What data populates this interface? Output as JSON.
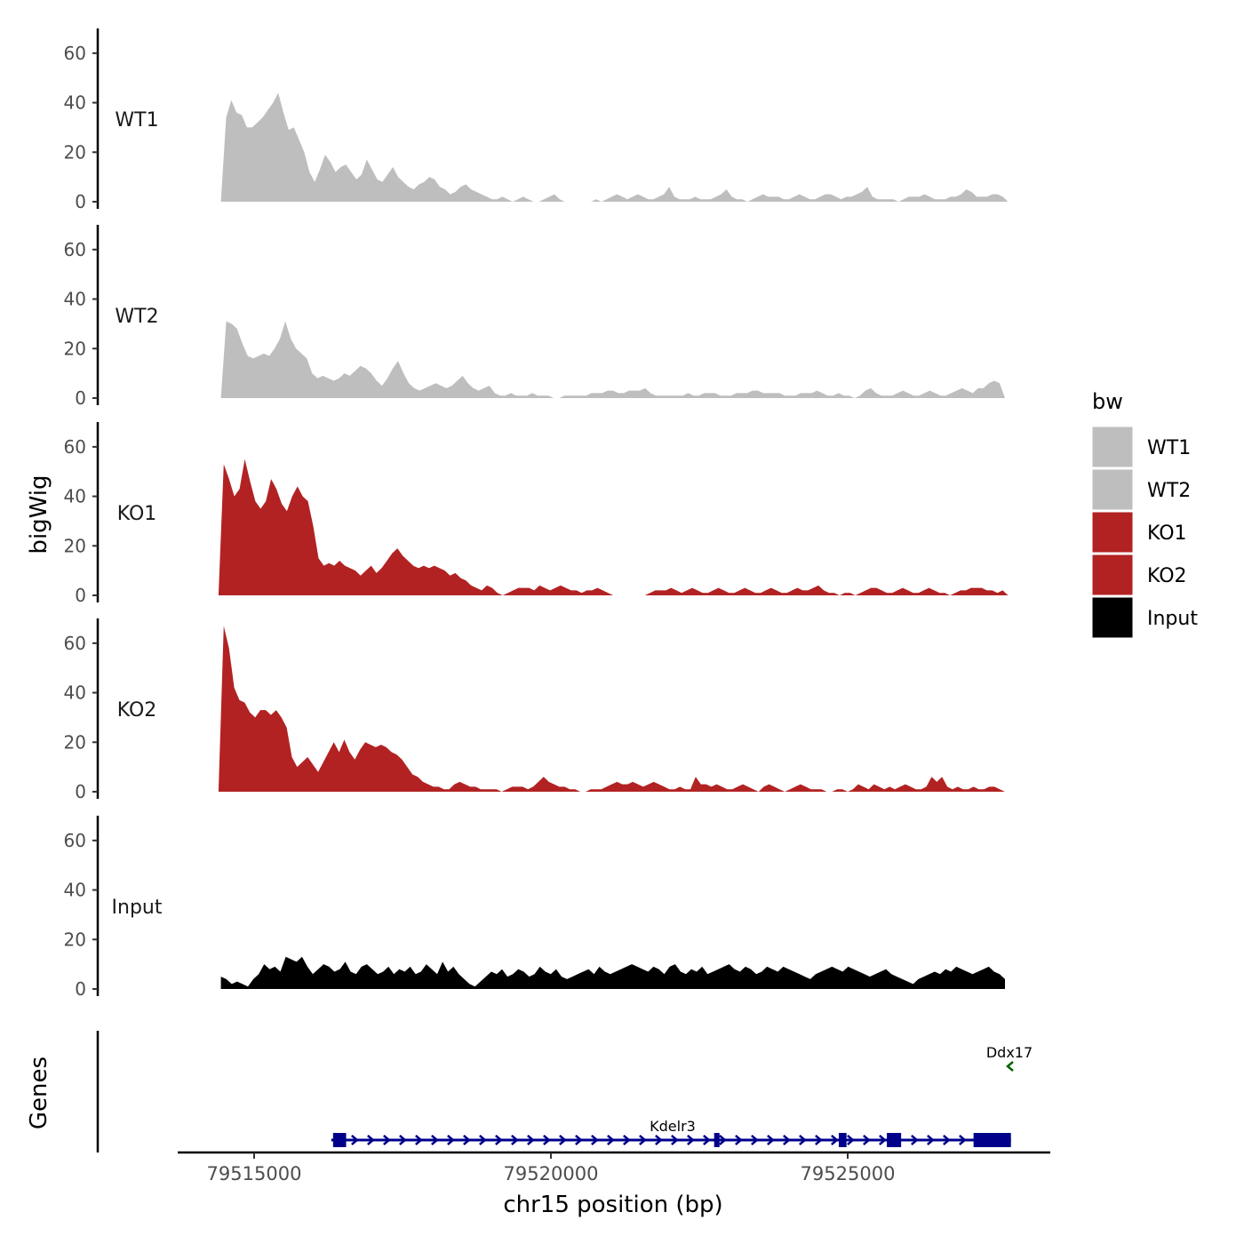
{
  "chart_data": {
    "type": "area",
    "title": "",
    "xlabel": "chr15 position (bp)",
    "ylabel": "bigWig",
    "genes_label": "Genes",
    "xlim": [
      79513600,
      79528500
    ],
    "x_ticks": [
      79515000,
      79520000,
      79525000
    ],
    "x_tick_labels": [
      "79515000",
      "79520000",
      "79525000"
    ],
    "ylim": [
      0,
      70
    ],
    "y_ticks": [
      0,
      20,
      40,
      60
    ],
    "y_tick_labels": [
      "0",
      "20",
      "40",
      "60"
    ],
    "legend": {
      "title": "bw",
      "position": "right",
      "entries": [
        {
          "label": "WT1",
          "color": "#bebebe"
        },
        {
          "label": "WT2",
          "color": "#bebebe"
        },
        {
          "label": "KO1",
          "color": "#b22222"
        },
        {
          "label": "KO2",
          "color": "#b22222"
        },
        {
          "label": "Input",
          "color": "#000000"
        }
      ]
    },
    "series": [
      {
        "name": "WT1",
        "color": "#bebebe",
        "x_start": 79514440,
        "x_end": 79527700,
        "values": [
          0,
          34,
          41,
          36,
          35,
          30,
          30,
          32,
          34,
          37,
          40,
          44,
          36,
          29,
          30,
          25,
          20,
          12,
          8,
          13,
          19,
          16,
          12,
          14,
          15,
          12,
          9,
          11,
          17,
          13,
          9,
          8,
          11,
          14,
          10,
          8,
          6,
          5,
          7,
          8,
          10,
          9,
          6,
          5,
          3,
          4,
          6,
          7,
          5,
          4,
          3,
          2,
          1,
          1,
          2,
          1,
          0,
          1,
          2,
          1,
          0,
          0,
          1,
          2,
          3,
          1,
          0,
          0,
          0,
          0,
          0,
          0,
          1,
          0,
          1,
          2,
          3,
          2,
          1,
          2,
          3,
          2,
          1,
          1,
          2,
          3,
          6,
          2,
          1,
          1,
          1,
          2,
          1,
          1,
          1,
          2,
          3,
          5,
          2,
          1,
          1,
          0,
          1,
          2,
          3,
          2,
          2,
          2,
          1,
          1,
          2,
          3,
          2,
          1,
          1,
          2,
          3,
          3,
          2,
          1,
          2,
          2,
          3,
          4,
          6,
          2,
          1,
          1,
          1,
          1,
          0,
          1,
          2,
          2,
          2,
          3,
          2,
          1,
          1,
          1,
          2,
          2,
          3,
          5,
          4,
          2,
          2,
          2,
          3,
          3,
          2,
          0
        ]
      },
      {
        "name": "WT2",
        "color": "#bebebe",
        "x_start": 79514440,
        "x_end": 79527650,
        "values": [
          0,
          31,
          30,
          28,
          22,
          17,
          16,
          17,
          18,
          17,
          20,
          24,
          31,
          24,
          20,
          18,
          16,
          10,
          8,
          9,
          8,
          7,
          8,
          10,
          9,
          11,
          13,
          12,
          10,
          7,
          5,
          8,
          12,
          15,
          10,
          6,
          4,
          3,
          4,
          5,
          6,
          5,
          4,
          5,
          7,
          9,
          6,
          4,
          3,
          4,
          5,
          2,
          1,
          1,
          2,
          1,
          1,
          1,
          2,
          1,
          1,
          1,
          0,
          0,
          1,
          1,
          1,
          1,
          1,
          2,
          2,
          2,
          3,
          3,
          2,
          2,
          3,
          3,
          3,
          4,
          2,
          1,
          1,
          1,
          1,
          1,
          1,
          2,
          1,
          1,
          2,
          2,
          2,
          1,
          1,
          1,
          2,
          2,
          2,
          3,
          3,
          2,
          2,
          2,
          2,
          1,
          1,
          1,
          2,
          2,
          2,
          3,
          2,
          1,
          1,
          2,
          1,
          1,
          0,
          1,
          3,
          4,
          2,
          1,
          1,
          1,
          2,
          3,
          2,
          1,
          1,
          2,
          3,
          2,
          1,
          1,
          2,
          3,
          4,
          3,
          2,
          4,
          4,
          6,
          7,
          6,
          0
        ]
      },
      {
        "name": "KO1",
        "color": "#b22222",
        "x_start": 79514400,
        "x_end": 79527700,
        "values": [
          0,
          53,
          47,
          40,
          43,
          55,
          46,
          38,
          35,
          38,
          47,
          43,
          37,
          34,
          40,
          44,
          40,
          38,
          28,
          15,
          12,
          13,
          12,
          14,
          12,
          11,
          10,
          8,
          10,
          12,
          9,
          11,
          14,
          17,
          19,
          16,
          14,
          12,
          11,
          12,
          11,
          12,
          11,
          10,
          8,
          9,
          7,
          6,
          4,
          3,
          2,
          4,
          3,
          1,
          0,
          1,
          2,
          3,
          3,
          3,
          2,
          4,
          3,
          2,
          3,
          4,
          3,
          2,
          2,
          1,
          2,
          2,
          3,
          2,
          1,
          0,
          0,
          0,
          0,
          0,
          0,
          0,
          1,
          2,
          2,
          2,
          3,
          2,
          1,
          2,
          3,
          2,
          1,
          1,
          2,
          3,
          2,
          1,
          1,
          2,
          3,
          2,
          1,
          1,
          2,
          3,
          2,
          1,
          1,
          2,
          3,
          2,
          2,
          3,
          4,
          2,
          1,
          1,
          0,
          1,
          1,
          0,
          1,
          2,
          3,
          3,
          2,
          1,
          1,
          2,
          3,
          2,
          1,
          1,
          2,
          3,
          2,
          1,
          1,
          0,
          1,
          2,
          2,
          3,
          3,
          3,
          2,
          2,
          1,
          2,
          0
        ]
      },
      {
        "name": "KO2",
        "color": "#b22222",
        "x_start": 79514400,
        "x_end": 79527650,
        "values": [
          0,
          67,
          58,
          42,
          37,
          36,
          32,
          30,
          33,
          33,
          31,
          33,
          30,
          26,
          14,
          10,
          12,
          14,
          11,
          8,
          12,
          16,
          20,
          16,
          21,
          16,
          13,
          17,
          20,
          19,
          18,
          19,
          18,
          16,
          15,
          13,
          10,
          7,
          6,
          4,
          3,
          2,
          2,
          1,
          1,
          3,
          4,
          3,
          2,
          2,
          1,
          1,
          1,
          1,
          0,
          1,
          2,
          2,
          2,
          1,
          2,
          4,
          6,
          4,
          3,
          2,
          2,
          1,
          1,
          0,
          0,
          1,
          1,
          1,
          2,
          3,
          4,
          3,
          3,
          4,
          3,
          2,
          3,
          4,
          3,
          2,
          1,
          1,
          2,
          1,
          1,
          6,
          3,
          3,
          2,
          3,
          2,
          1,
          1,
          2,
          3,
          2,
          1,
          0,
          2,
          3,
          2,
          1,
          0,
          1,
          2,
          3,
          2,
          1,
          1,
          1,
          0,
          0,
          1,
          1,
          0,
          1,
          3,
          2,
          1,
          3,
          2,
          1,
          2,
          1,
          2,
          3,
          2,
          1,
          1,
          2,
          6,
          4,
          6,
          2,
          1,
          2,
          1,
          1,
          2,
          1,
          1,
          2,
          2,
          1,
          0
        ]
      },
      {
        "name": "Input",
        "color": "#000000",
        "x_start": 79514440,
        "x_end": 79527650,
        "values": [
          5,
          4,
          2,
          3,
          2,
          1,
          4,
          6,
          10,
          8,
          9,
          7,
          13,
          12,
          11,
          13,
          9,
          6,
          8,
          10,
          9,
          7,
          8,
          11,
          7,
          6,
          9,
          10,
          8,
          6,
          7,
          9,
          6,
          8,
          7,
          9,
          6,
          7,
          10,
          8,
          6,
          11,
          7,
          9,
          6,
          4,
          2,
          1,
          3,
          5,
          7,
          6,
          8,
          5,
          6,
          8,
          7,
          5,
          6,
          9,
          7,
          6,
          8,
          5,
          4,
          5,
          6,
          7,
          8,
          6,
          9,
          7,
          6,
          7,
          8,
          9,
          10,
          9,
          8,
          7,
          9,
          8,
          6,
          9,
          10,
          7,
          6,
          8,
          7,
          9,
          6,
          7,
          8,
          9,
          10,
          8,
          7,
          9,
          8,
          6,
          7,
          9,
          8,
          7,
          9,
          8,
          7,
          6,
          5,
          4,
          6,
          7,
          8,
          9,
          8,
          7,
          9,
          8,
          7,
          6,
          5,
          6,
          7,
          8,
          6,
          5,
          4,
          3,
          2,
          4,
          5,
          6,
          7,
          6,
          8,
          7,
          9,
          8,
          7,
          6,
          7,
          8,
          9,
          7,
          6,
          4
        ]
      }
    ],
    "genes": [
      {
        "name": "Kdelr3",
        "strand": "+",
        "color": "#00008b",
        "start": 79516300,
        "end": 79527750,
        "exons": [
          [
            79516330,
            79516550
          ],
          [
            79522750,
            79522840
          ],
          [
            79524850,
            79524980
          ],
          [
            79525660,
            79525900
          ],
          [
            79527120,
            79527750
          ]
        ]
      },
      {
        "name": "Ddx17",
        "strand": "-",
        "color": "#006400",
        "start": 79527700,
        "end": 79527800,
        "exons": []
      }
    ]
  }
}
